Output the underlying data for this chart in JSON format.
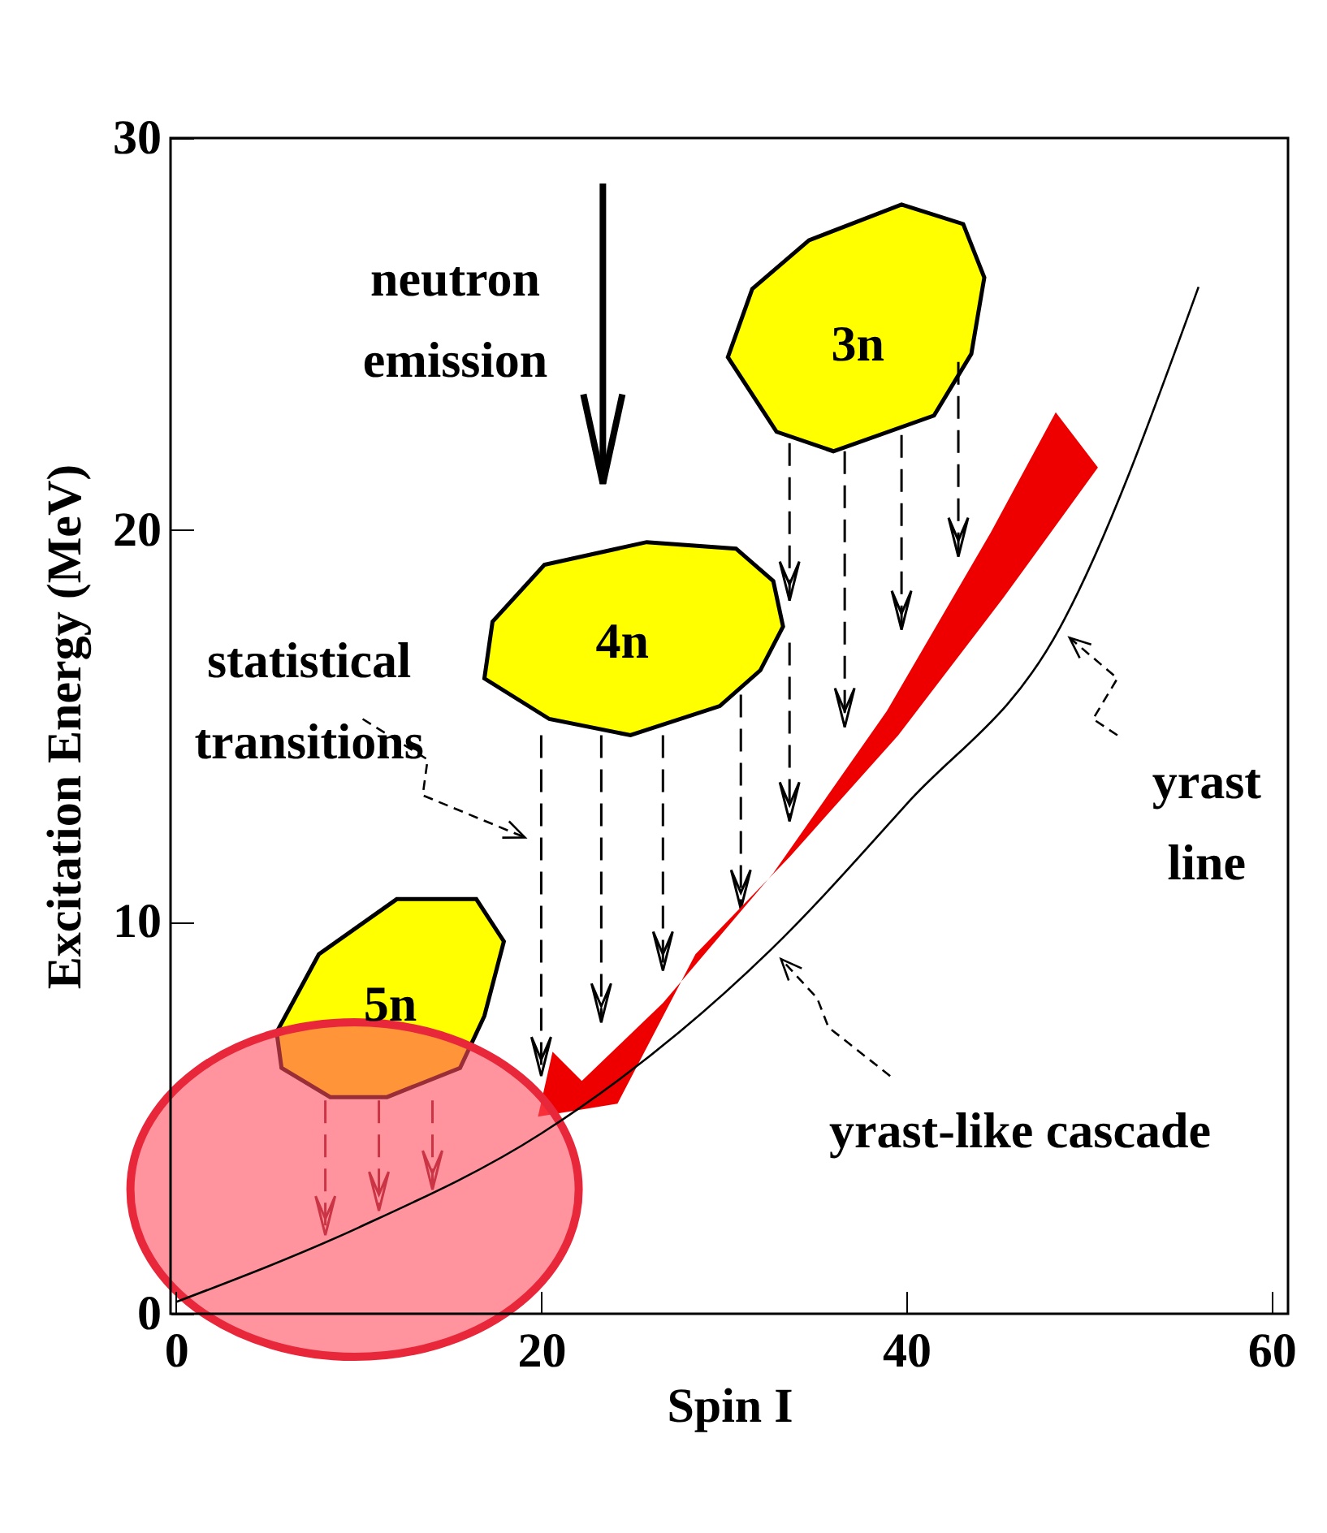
{
  "chart_data": {
    "type": "line",
    "xlabel": "Spin I",
    "ylabel": "Excitation Energy (MeV)",
    "x": [
      0,
      10,
      20,
      32.6,
      40,
      48.4,
      56
    ],
    "series": [
      {
        "color": "#000000",
        "values": [
          0.3,
          2.2,
          4.6,
          9.3,
          13,
          17.5,
          26.2
        ]
      }
    ],
    "xlim": [
      -0.3,
      60.9
    ],
    "xticks": [
      0,
      20,
      40,
      60
    ],
    "ylim": [
      0,
      30
    ],
    "yticks": [
      0,
      10,
      20,
      30
    ],
    "grid": false,
    "marker": "none",
    "line_style": "solid",
    "annotations": [
      "neutron emission",
      "statistical transitions",
      "3n",
      "4n",
      "5n",
      {
        "text": "yrast line",
        "x": 48.4,
        "y": 17.5
      },
      {
        "text": "yrast-like cascade",
        "x": 32.6,
        "y": 9.3
      }
    ]
  }
}
